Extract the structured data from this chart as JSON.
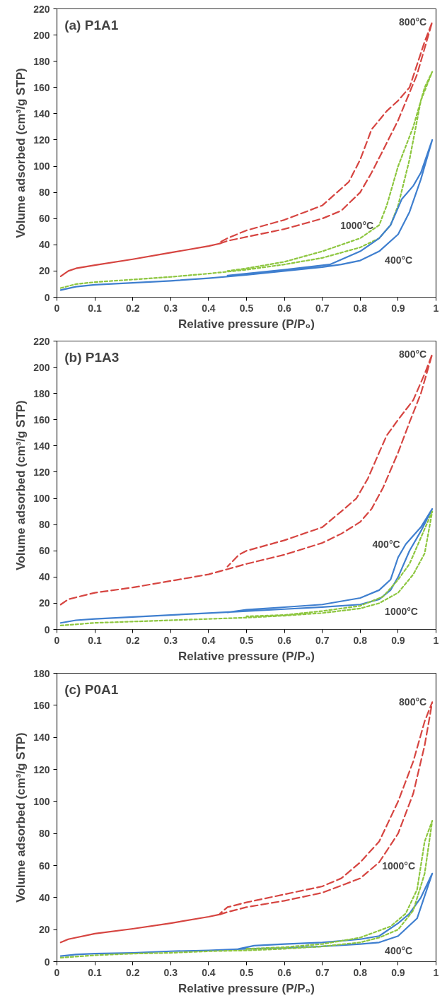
{
  "chart_data": [
    {
      "type": "line",
      "title": "(a) P1A1",
      "xlabel": "Relative pressure (P/P₀)",
      "ylabel": "Volume adsorbed (cm³/g STP)",
      "xlim": [
        0,
        1
      ],
      "ylim": [
        0,
        220
      ],
      "xticks": [
        0,
        0.1,
        0.2,
        0.3,
        0.4,
        0.5,
        0.6,
        0.7,
        0.8,
        0.9,
        1
      ],
      "yticks": [
        0,
        20,
        40,
        60,
        80,
        100,
        120,
        140,
        160,
        180,
        200,
        220
      ],
      "marker": "none",
      "annotations": [
        {
          "text": "800°C",
          "x": 0.99,
          "y": 210
        },
        {
          "text": "1000°C",
          "x": 0.85,
          "y": 55
        },
        {
          "text": "400°C",
          "x": 0.85,
          "y": 35
        }
      ],
      "series": [
        {
          "color": "#d64541",
          "line_style": "solid",
          "x": [
            0.01,
            0.03,
            0.05,
            0.1,
            0.2,
            0.3,
            0.4,
            0.43
          ],
          "values": [
            16,
            20,
            22,
            24.5,
            29,
            34,
            39,
            41
          ]
        },
        {
          "color": "#d64541",
          "line_style": "dashed",
          "x": [
            0.43,
            0.45,
            0.5,
            0.6,
            0.7,
            0.75,
            0.8,
            0.83,
            0.86,
            0.9,
            0.95,
            0.98,
            0.99,
            0.97,
            0.93,
            0.9,
            0.87,
            0.83,
            0.8,
            0.77,
            0.7,
            0.6,
            0.5,
            0.45,
            0.43
          ],
          "values": [
            41,
            43,
            46,
            52,
            60,
            66,
            80,
            95,
            112,
            135,
            170,
            200,
            210,
            195,
            160,
            150,
            142,
            128,
            105,
            88,
            70,
            59,
            51,
            45,
            42
          ]
        },
        {
          "color": "#8dc63f",
          "line_style": "dotted",
          "x": [
            0.01,
            0.05,
            0.1,
            0.2,
            0.3,
            0.4,
            0.5,
            0.6,
            0.7,
            0.8,
            0.85,
            0.88,
            0.9,
            0.93,
            0.96,
            0.99,
            0.97,
            0.94,
            0.9,
            0.87,
            0.85,
            0.8,
            0.7,
            0.6,
            0.5,
            0.45
          ],
          "values": [
            7,
            10,
            11.5,
            13.5,
            15.5,
            18,
            21,
            25,
            30,
            38,
            45,
            55,
            70,
            105,
            150,
            172,
            160,
            130,
            100,
            70,
            55,
            45,
            35,
            27,
            22,
            20
          ]
        },
        {
          "color": "#3f7fcf",
          "line_style": "solid",
          "x": [
            0.01,
            0.05,
            0.1,
            0.2,
            0.3,
            0.4,
            0.5,
            0.6,
            0.7,
            0.75,
            0.8,
            0.85,
            0.9,
            0.93,
            0.96,
            0.99,
            0.96,
            0.94,
            0.91,
            0.88,
            0.85,
            0.8,
            0.72,
            0.6,
            0.5,
            0.45
          ],
          "values": [
            5.5,
            8,
            9.5,
            11,
            12.5,
            14.5,
            17,
            20,
            23,
            25,
            28,
            35,
            48,
            65,
            90,
            120,
            95,
            85,
            75,
            55,
            45,
            35,
            25,
            21,
            18,
            16.5
          ]
        }
      ]
    },
    {
      "type": "line",
      "title": "(b) P1A3",
      "xlabel": "Relative pressure (P/P₀)",
      "ylabel": "Volume adsorbed (cm³/g STP)",
      "xlim": [
        0,
        1
      ],
      "ylim": [
        0,
        220
      ],
      "xticks": [
        0,
        0.1,
        0.2,
        0.3,
        0.4,
        0.5,
        0.6,
        0.7,
        0.8,
        0.9,
        1
      ],
      "yticks": [
        0,
        20,
        40,
        60,
        80,
        100,
        120,
        140,
        160,
        180,
        200,
        220
      ],
      "marker": "none",
      "annotations": [
        {
          "text": "800°C",
          "x": 0.99,
          "y": 210
        },
        {
          "text": "400°C",
          "x": 0.92,
          "y": 65
        },
        {
          "text": "1000°C",
          "x": 0.85,
          "y": 20
        }
      ],
      "series": [
        {
          "color": "#d64541",
          "line_style": "dashed",
          "x": [
            0.01,
            0.03,
            0.1,
            0.2,
            0.3,
            0.4,
            0.45,
            0.5,
            0.6,
            0.7,
            0.75,
            0.8,
            0.83,
            0.86,
            0.9,
            0.93,
            0.96,
            0.99,
            0.97,
            0.94,
            0.9,
            0.87,
            0.85,
            0.82,
            0.79,
            0.75,
            0.7,
            0.6,
            0.5,
            0.48,
            0.45
          ],
          "values": [
            19,
            23,
            28,
            32,
            37,
            42,
            46,
            50,
            57,
            66,
            73,
            82,
            92,
            108,
            135,
            158,
            180,
            210,
            195,
            175,
            160,
            148,
            135,
            115,
            100,
            90,
            78,
            68,
            60,
            57,
            48
          ]
        },
        {
          "color": "#3f7fcf",
          "line_style": "solid",
          "x": [
            0.01,
            0.05,
            0.1,
            0.2,
            0.3,
            0.4,
            0.5,
            0.6,
            0.7,
            0.8,
            0.85,
            0.88,
            0.9,
            0.93,
            0.96,
            0.99,
            0.96,
            0.92,
            0.9,
            0.88,
            0.85,
            0.8,
            0.7,
            0.6,
            0.5,
            0.45
          ],
          "values": [
            5,
            7,
            8,
            9.5,
            11,
            12.5,
            14,
            15.5,
            17,
            19,
            23,
            30,
            40,
            60,
            75,
            92,
            78,
            65,
            55,
            38,
            30,
            24,
            19,
            17,
            15,
            13
          ]
        },
        {
          "color": "#8dc63f",
          "line_style": "dotted",
          "x": [
            0.01,
            0.1,
            0.2,
            0.3,
            0.4,
            0.5,
            0.6,
            0.7,
            0.8,
            0.85,
            0.9,
            0.94,
            0.97,
            0.99,
            0.96,
            0.93,
            0.9,
            0.86,
            0.8,
            0.7,
            0.6,
            0.5
          ],
          "values": [
            3,
            5,
            6,
            7,
            8,
            9,
            10.5,
            12.5,
            16,
            20,
            28,
            42,
            58,
            90,
            70,
            50,
            38,
            25,
            18,
            14,
            11,
            10
          ]
        }
      ]
    },
    {
      "type": "line",
      "title": "(c) P0A1",
      "xlabel": "Relative pressure (P/P₀)",
      "ylabel": "Volume adsorbed (cm³/g STP)",
      "xlim": [
        0,
        1
      ],
      "ylim": [
        0,
        180
      ],
      "xticks": [
        0,
        0.1,
        0.2,
        0.3,
        0.4,
        0.5,
        0.6,
        0.7,
        0.8,
        0.9,
        1
      ],
      "yticks": [
        0,
        20,
        40,
        60,
        80,
        100,
        120,
        140,
        160,
        180
      ],
      "marker": "none",
      "annotations": [
        {
          "text": "800°C",
          "x": 0.99,
          "y": 162
        },
        {
          "text": "1000°C",
          "x": 0.96,
          "y": 60
        },
        {
          "text": "400°C",
          "x": 0.85,
          "y": 12
        }
      ],
      "series": [
        {
          "color": "#d64541",
          "line_style": "solid",
          "x": [
            0.01,
            0.03,
            0.05,
            0.1,
            0.2,
            0.3,
            0.4,
            0.43
          ],
          "values": [
            12,
            14,
            15,
            17.5,
            20.5,
            24,
            28,
            29.5
          ]
        },
        {
          "color": "#d64541",
          "line_style": "dashed",
          "x": [
            0.43,
            0.45,
            0.5,
            0.6,
            0.7,
            0.8,
            0.85,
            0.9,
            0.94,
            0.97,
            0.99,
            0.97,
            0.94,
            0.9,
            0.85,
            0.8,
            0.75,
            0.7,
            0.6,
            0.5,
            0.45,
            0.43
          ],
          "values": [
            29.5,
            31,
            34,
            38,
            43,
            52,
            62,
            80,
            105,
            135,
            162,
            150,
            125,
            100,
            75,
            62,
            52,
            47,
            42,
            37,
            34,
            30
          ]
        },
        {
          "color": "#3f7fcf",
          "line_style": "solid",
          "x": [
            0.01,
            0.05,
            0.1,
            0.2,
            0.3,
            0.4,
            0.5,
            0.6,
            0.7,
            0.8,
            0.85,
            0.9,
            0.95,
            0.99,
            0.96,
            0.93,
            0.9,
            0.85,
            0.8,
            0.7,
            0.6,
            0.52,
            0.48
          ],
          "values": [
            3.5,
            4.5,
            5,
            5.5,
            6.5,
            7,
            8,
            8.5,
            9.5,
            11,
            12,
            16,
            27,
            55,
            40,
            30,
            24,
            16,
            14,
            12,
            11,
            10,
            8
          ]
        },
        {
          "color": "#8dc63f",
          "line_style": "dotted",
          "x": [
            0.01,
            0.1,
            0.2,
            0.3,
            0.4,
            0.5,
            0.6,
            0.7,
            0.8,
            0.85,
            0.9,
            0.94,
            0.97,
            0.99,
            0.97,
            0.96,
            0.95,
            0.92,
            0.88,
            0.8,
            0.7,
            0.6,
            0.5
          ],
          "values": [
            2.5,
            4,
            5,
            5.5,
            6.5,
            7,
            8,
            9.5,
            12,
            15,
            20,
            32,
            55,
            88,
            75,
            60,
            45,
            30,
            22,
            15,
            11,
            9,
            8
          ]
        }
      ]
    }
  ]
}
